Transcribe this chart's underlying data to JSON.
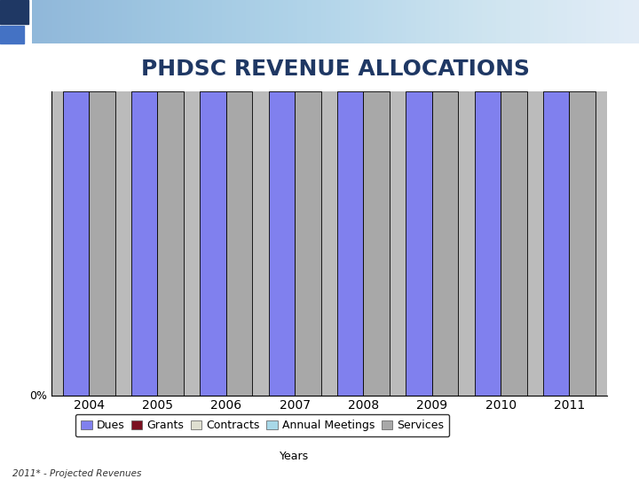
{
  "title": "PHDSC REVENUE ALLOCATIONS",
  "years": [
    2004,
    2005,
    2006,
    2007,
    2008,
    2009,
    2010,
    2011
  ],
  "categories": [
    "Dues",
    "Grants",
    "Contracts",
    "Annual Meetings",
    "Services"
  ],
  "colors": {
    "Dues": "#8080EE",
    "Grants": "#7B1020",
    "Contracts": "#DEDED0",
    "Annual Meetings": "#A8D8E8",
    "Services": "#A8A8A8"
  },
  "footnote": "2011* - Projected Revenues",
  "ylim": [
    0,
    100
  ],
  "background_color": "#FFFFFF",
  "plot_bg_color": "#BBBBBB",
  "title_color": "#1F3864",
  "title_fontsize": 18,
  "legend_fontsize": 9,
  "bar_edgecolor": "#000000",
  "bar_width": 0.38,
  "xlabel": "Years",
  "header_dark_blue": "#1F3864",
  "header_mid_blue": "#4472C4",
  "header_light": "#D0D8E8"
}
